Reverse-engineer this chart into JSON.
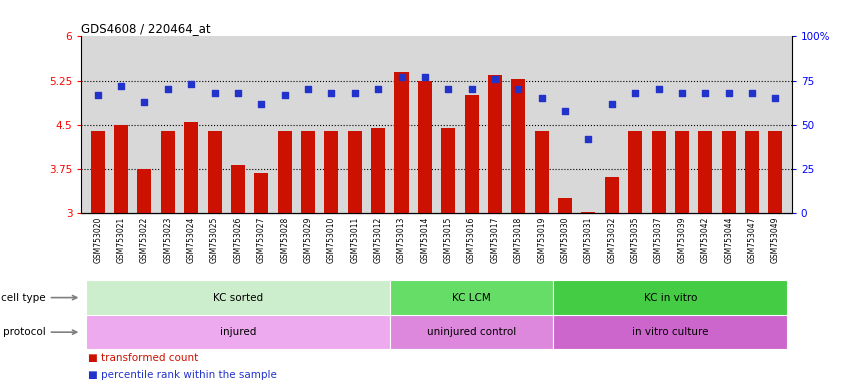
{
  "title": "GDS4608 / 220464_at",
  "samples": [
    "GSM753020",
    "GSM753021",
    "GSM753022",
    "GSM753023",
    "GSM753024",
    "GSM753025",
    "GSM753026",
    "GSM753027",
    "GSM753028",
    "GSM753029",
    "GSM753010",
    "GSM753011",
    "GSM753012",
    "GSM753013",
    "GSM753014",
    "GSM753015",
    "GSM753016",
    "GSM753017",
    "GSM753018",
    "GSM753019",
    "GSM753030",
    "GSM753031",
    "GSM753032",
    "GSM753035",
    "GSM753037",
    "GSM753039",
    "GSM753042",
    "GSM753044",
    "GSM753047",
    "GSM753049"
  ],
  "red_values": [
    4.4,
    4.5,
    3.75,
    4.4,
    4.55,
    4.4,
    3.82,
    3.68,
    4.4,
    4.4,
    4.4,
    4.4,
    4.45,
    5.4,
    5.25,
    4.44,
    5.0,
    5.35,
    5.27,
    4.4,
    3.25,
    3.02,
    3.62,
    4.4,
    4.4,
    4.4,
    4.4,
    4.4,
    4.4,
    4.4
  ],
  "blue_values": [
    67,
    72,
    63,
    70,
    73,
    68,
    68,
    62,
    67,
    70,
    68,
    68,
    70,
    77,
    77,
    70,
    70,
    76,
    70,
    65,
    58,
    42,
    62,
    68,
    70,
    68,
    68,
    68,
    68,
    65
  ],
  "ylim_left": [
    3.0,
    6.0
  ],
  "ylim_right": [
    0,
    100
  ],
  "yticks_left": [
    3.0,
    3.75,
    4.5,
    5.25,
    6.0
  ],
  "yticks_right": [
    0,
    25,
    50,
    75,
    100
  ],
  "ytick_labels_left": [
    "3",
    "3.75",
    "4.5",
    "5.25",
    "6"
  ],
  "ytick_labels_right": [
    "0",
    "25",
    "50",
    "75",
    "100%"
  ],
  "hlines": [
    3.75,
    4.5,
    5.25
  ],
  "bar_color": "#cc1100",
  "dot_color": "#2233cc",
  "chart_bg": "#d8d8d8",
  "xtick_bg": "#cccccc",
  "cell_type_groups": [
    {
      "label": "KC sorted",
      "start": 0,
      "end": 13,
      "color": "#cceecc"
    },
    {
      "label": "KC LCM",
      "start": 13,
      "end": 20,
      "color": "#66dd66"
    },
    {
      "label": "KC in vitro",
      "start": 20,
      "end": 30,
      "color": "#44cc44"
    }
  ],
  "protocol_groups": [
    {
      "label": "injured",
      "start": 0,
      "end": 13,
      "color": "#eeaaee"
    },
    {
      "label": "uninjured control",
      "start": 13,
      "end": 20,
      "color": "#dd88dd"
    },
    {
      "label": "in vitro culture",
      "start": 20,
      "end": 30,
      "color": "#cc66cc"
    }
  ],
  "legend_red_label": "transformed count",
  "legend_blue_label": "percentile rank within the sample",
  "legend_red_color": "#cc1100",
  "legend_blue_color": "#2233cc",
  "row_cell_label": "cell type",
  "row_prot_label": "protocol"
}
